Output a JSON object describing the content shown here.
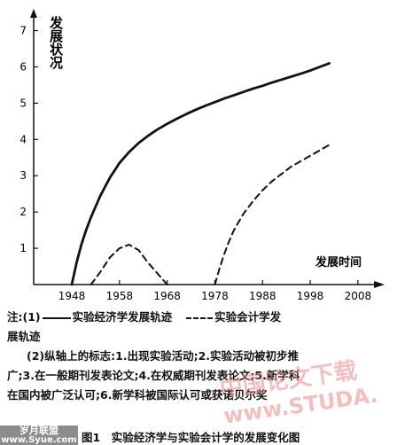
{
  "chart_data": {
    "type": "line",
    "ylabel": "发展状况",
    "xlabel": "发展时间",
    "yticks": [
      1,
      2,
      3,
      4,
      5,
      6,
      7
    ],
    "xticks": [
      1948,
      1958,
      1968,
      1978,
      1988,
      1998,
      2008
    ],
    "xlim": [
      1940,
      2011
    ],
    "ylim": [
      0,
      7.6
    ],
    "series": [
      {
        "name": "实验经济学发展轨迹",
        "style": "solid",
        "x": [
          1948,
          1949,
          1950,
          1951,
          1952,
          1953,
          1954,
          1955,
          1956,
          1957,
          1958,
          1960,
          1962,
          1964,
          1966,
          1968,
          1970,
          1972,
          1974,
          1976,
          1978,
          1980,
          1982,
          1984,
          1986,
          1988,
          1990,
          1992,
          1994,
          1996,
          1998,
          2000,
          2002
        ],
        "y": [
          0,
          0.6,
          1.1,
          1.5,
          1.85,
          2.15,
          2.45,
          2.7,
          2.95,
          3.15,
          3.35,
          3.65,
          3.9,
          4.1,
          4.28,
          4.43,
          4.57,
          4.7,
          4.82,
          4.93,
          5.03,
          5.13,
          5.22,
          5.31,
          5.4,
          5.48,
          5.57,
          5.65,
          5.73,
          5.81,
          5.9,
          6.0,
          6.1
        ]
      },
      {
        "name": "实验会计学发展轨迹",
        "style": "dashed",
        "segments": [
          {
            "x": [
              1952,
              1954,
              1956,
              1958,
              1960,
              1962,
              1964,
              1966,
              1968
            ],
            "y": [
              0,
              0.35,
              0.75,
              1.0,
              1.1,
              0.95,
              0.6,
              0.3,
              0.0
            ]
          },
          {
            "x": [
              1978,
              1979,
              1980,
              1981,
              1982,
              1984,
              1986,
              1988,
              1990,
              1992,
              1994,
              1996,
              1998,
              2000,
              2002
            ],
            "y": [
              0,
              0.45,
              0.85,
              1.2,
              1.5,
              1.95,
              2.3,
              2.6,
              2.85,
              3.05,
              3.25,
              3.4,
              3.55,
              3.7,
              3.85
            ]
          }
        ]
      }
    ]
  },
  "notes": {
    "line1_prefix": "注:(1)",
    "legend_solid": "实验经济学发展轨迹",
    "legend_dashed": "实验会计学发",
    "line2": "展轨迹",
    "line3": "(2)纵轴上的标志:1.出现实验活动;2.实验活动被初步推",
    "line4": "广;3.在一般期刊发表论文;4.在权威期刊发表论文;5.新学科",
    "line5": "在国内被广泛认可;6.新学科被国际认可或获诺贝尔奖"
  },
  "caption": {
    "source_line1": "岁月联盟",
    "source_line2": "www.Syue.com",
    "text": "图1　实验经济学与实验会计学的发展变化图"
  },
  "watermark": {
    "line1": "中国论文下载",
    "line2": "www.STUDA."
  },
  "colors": {
    "line": "#111111",
    "watermark": "#e88a8a",
    "source_bg": "#8c8c8c"
  }
}
